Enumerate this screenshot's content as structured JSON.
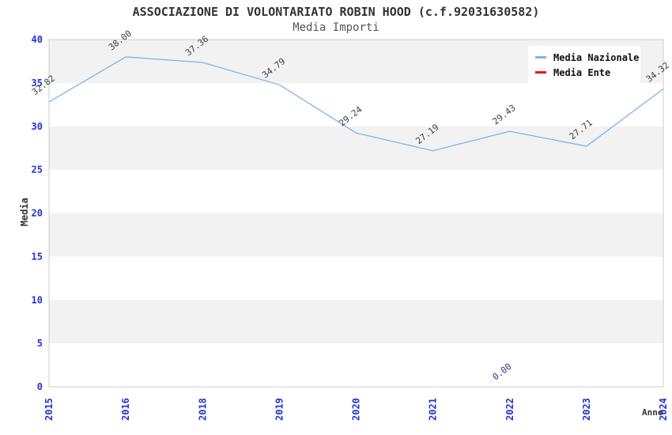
{
  "chart_data": {
    "type": "line",
    "title": "ASSOCIAZIONE DI VOLONTARIATO ROBIN HOOD (c.f.92031630582)",
    "subtitle": "Media Importi",
    "xlabel": "Anno",
    "ylabel": "Media",
    "categories": [
      "2015",
      "2016",
      "2018",
      "2019",
      "2020",
      "2021",
      "2022",
      "2023",
      "2024"
    ],
    "y_ticks": [
      0,
      5,
      10,
      15,
      20,
      25,
      30,
      35,
      40
    ],
    "ylim": [
      0,
      40
    ],
    "grid": "alternating-horizontal-bands",
    "legend_position": "top-right",
    "series": [
      {
        "name": "Media Nazionale",
        "color": "#7cb5ec",
        "label_color": "#3d3d3d",
        "values": [
          32.82,
          38.0,
          37.36,
          34.79,
          29.24,
          27.19,
          29.43,
          27.71,
          34.32
        ]
      },
      {
        "name": "Media Ente",
        "color": "#ee1111",
        "label_color": "#333380",
        "values": [
          null,
          null,
          null,
          null,
          null,
          null,
          0.0,
          null,
          null
        ]
      }
    ],
    "colors": {
      "tick_label": "#2233cc",
      "title": "#333333",
      "subtitle": "#555555",
      "axis_title": "#333333",
      "band": "#f2f2f2",
      "plot_border": "#cccccc",
      "background": "#ffffff"
    }
  }
}
